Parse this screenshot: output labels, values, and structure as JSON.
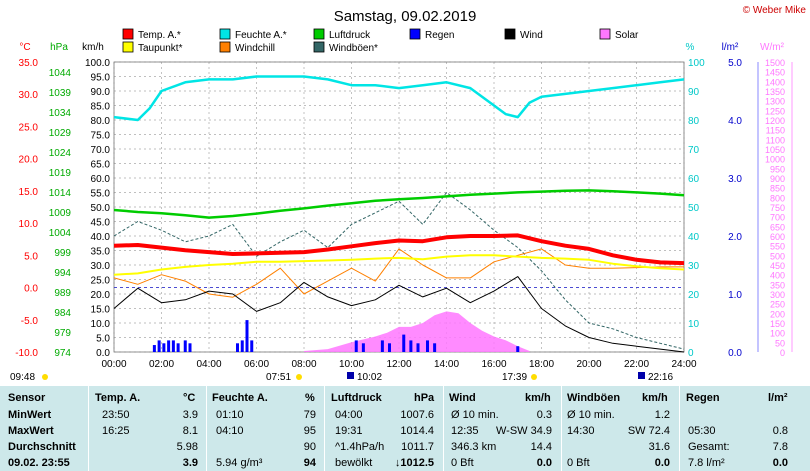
{
  "title": "Samstag, 09.02.2019",
  "copyright": "© Weber Mike",
  "legend": [
    {
      "label": "Temp. A.*",
      "color": "#ff0000"
    },
    {
      "label": "Feuchte A.*",
      "color": "#00e5e5"
    },
    {
      "label": "Luftdruck",
      "color": "#00cc00"
    },
    {
      "label": "Regen",
      "color": "#0000ff"
    },
    {
      "label": "Wind",
      "color": "#000000"
    },
    {
      "label": "Solar",
      "color": "#ff77ff"
    },
    {
      "label": "Taupunkt*",
      "color": "#ffff00"
    },
    {
      "label": "Windchill",
      "color": "#ff8000"
    },
    {
      "label": "Windböen*",
      "color": "#336666"
    }
  ],
  "axes": {
    "temp": {
      "unit": "°C",
      "ticks": [
        "35.0",
        "30.0",
        "25.0",
        "20.0",
        "15.0",
        "10.0",
        "5.0",
        "0.0",
        "-5.0",
        "-10.0"
      ],
      "color": "#ff0000"
    },
    "pressure": {
      "unit": "hPa",
      "ticks": [
        "1044",
        "1039",
        "1034",
        "1029",
        "1024",
        "1019",
        "1014",
        "1009",
        "1004",
        "999",
        "994",
        "989",
        "984",
        "979",
        "974"
      ],
      "color": "#00aa00"
    },
    "wind": {
      "unit": "km/h",
      "ticks": [
        "100.0",
        "95.0",
        "90.0",
        "85.0",
        "80.0",
        "75.0",
        "70.0",
        "65.0",
        "60.0",
        "55.0",
        "50.0",
        "45.0",
        "40.0",
        "35.0",
        "30.0",
        "25.0",
        "20.0",
        "15.0",
        "10.0",
        "5.0",
        "0.0"
      ],
      "color": "#000000"
    },
    "humidity": {
      "unit": "%",
      "ticks": [
        "100",
        "90",
        "80",
        "70",
        "60",
        "50",
        "40",
        "30",
        "20",
        "10",
        "0"
      ],
      "color": "#00c8c8"
    },
    "rain": {
      "unit": "l/m²",
      "ticks": [
        "5.0",
        "4.0",
        "3.0",
        "2.0",
        "1.0",
        "0.0"
      ],
      "color": "#0000cc"
    },
    "solar": {
      "unit": "W/m²",
      "ticks": [
        "1500",
        "1450",
        "1400",
        "1350",
        "1300",
        "1250",
        "1200",
        "1150",
        "1100",
        "1050",
        "1000",
        "950",
        "900",
        "850",
        "800",
        "750",
        "700",
        "650",
        "600",
        "550",
        "500",
        "450",
        "400",
        "350",
        "300",
        "250",
        "200",
        "150",
        "100",
        "50",
        "0"
      ],
      "color": "#ff77ff"
    },
    "time": [
      "00:00",
      "02:00",
      "04:00",
      "06:00",
      "08:00",
      "10:00",
      "12:00",
      "14:00",
      "16:00",
      "18:00",
      "20:00",
      "22:00",
      "24:00"
    ]
  },
  "sun_moon": {
    "moonset": "09:48",
    "sunrise": "07:51",
    "moonrise_1": "10:02",
    "sunset": "17:39",
    "moonrise_2": "22:16"
  },
  "chart_data": {
    "type": "line",
    "title": "Samstag, 09.02.2019",
    "x_range": [
      "00:00",
      "24:00"
    ],
    "series": [
      {
        "name": "Temp. A.*",
        "unit": "°C",
        "color": "#ff0000",
        "x": [
          0,
          1,
          2,
          3,
          4,
          5,
          6,
          7,
          8,
          9,
          10,
          11,
          12,
          13,
          14,
          15,
          16,
          17,
          18,
          19,
          20,
          21,
          22,
          23,
          24
        ],
        "values": [
          6.5,
          6.6,
          6.2,
          5.8,
          5.5,
          5.2,
          5.3,
          5.4,
          5.5,
          5.9,
          6.4,
          6.9,
          7.3,
          7.2,
          7.8,
          8.0,
          8.0,
          8.1,
          7.2,
          6.5,
          6.0,
          5.0,
          4.3,
          3.9,
          3.8
        ]
      },
      {
        "name": "Taupunkt*",
        "unit": "°C",
        "color": "#ffff00",
        "x": [
          0,
          1,
          2,
          3,
          4,
          5,
          6,
          7,
          8,
          9,
          10,
          11,
          12,
          13,
          14,
          15,
          16,
          17,
          18,
          19,
          20,
          21,
          22,
          23,
          24
        ],
        "values": [
          2.0,
          2.2,
          2.8,
          3.2,
          3.5,
          3.7,
          4.0,
          4.0,
          4.1,
          4.2,
          4.3,
          4.5,
          4.6,
          4.4,
          4.8,
          5.0,
          5.0,
          4.8,
          4.6,
          4.5,
          4.3,
          3.7,
          3.3,
          3.0,
          2.8
        ]
      },
      {
        "name": "Feuchte A.*",
        "unit": "%",
        "color": "#00e5e5",
        "x": [
          0,
          1,
          1.5,
          2,
          3,
          4,
          5,
          6,
          7,
          8,
          9,
          10,
          11,
          12,
          13,
          14,
          15,
          16,
          16.5,
          17,
          17.5,
          18,
          19,
          20,
          21,
          22,
          23,
          24
        ],
        "values": [
          81,
          80,
          84,
          90,
          93,
          94,
          94,
          95,
          95,
          95,
          94,
          92,
          92,
          91,
          92,
          93,
          91,
          85,
          82,
          81,
          86,
          88,
          89,
          90,
          91,
          92,
          93,
          94
        ]
      },
      {
        "name": "Luftdruck",
        "unit": "hPa",
        "color": "#00cc00",
        "x": [
          0,
          1,
          2,
          3,
          4,
          5,
          6,
          7,
          8,
          9,
          10,
          11,
          12,
          13,
          14,
          15,
          16,
          17,
          18,
          19,
          20,
          21,
          22,
          23,
          24
        ],
        "values": [
          1009.5,
          1009.0,
          1008.7,
          1008.2,
          1007.6,
          1008.0,
          1008.6,
          1009.3,
          1009.9,
          1010.6,
          1011.2,
          1011.8,
          1012.2,
          1012.5,
          1012.9,
          1013.3,
          1013.6,
          1013.9,
          1014.1,
          1014.3,
          1014.4,
          1014.2,
          1013.9,
          1013.6,
          1013.2
        ]
      },
      {
        "name": "Wind",
        "unit": "km/h",
        "color": "#000000",
        "x": [
          0,
          1,
          2,
          3,
          4,
          5,
          6,
          7,
          8,
          9,
          10,
          11,
          12,
          13,
          14,
          15,
          16,
          17,
          18,
          19,
          20,
          21,
          22,
          23,
          24
        ],
        "values": [
          15,
          22,
          17,
          18,
          21,
          20,
          14,
          17,
          24,
          19,
          16,
          18,
          23,
          19,
          22,
          17,
          21,
          26,
          15,
          9,
          5,
          3,
          2,
          1,
          0
        ]
      },
      {
        "name": "Windchill",
        "unit": "°C",
        "color": "#ff8000",
        "x": [
          0,
          1,
          2,
          3,
          4,
          5,
          6,
          7,
          8,
          9,
          10,
          11,
          12,
          13,
          14,
          15,
          16,
          17,
          18,
          19,
          20,
          21,
          22,
          23,
          24
        ],
        "values": [
          1.5,
          0.5,
          2.0,
          1.0,
          -1.0,
          -1.5,
          0.5,
          3.0,
          -1.0,
          1.0,
          3.0,
          1.0,
          6.0,
          3.5,
          1.5,
          1.5,
          4.0,
          5.0,
          6.0,
          3.5,
          3.0,
          3.0,
          3.1,
          3.2,
          3.2
        ]
      },
      {
        "name": "Windböen*",
        "unit": "km/h",
        "color": "#336666",
        "x": [
          0,
          1,
          2,
          3,
          4,
          5,
          6,
          7,
          8,
          9,
          10,
          11,
          12,
          13,
          14,
          15,
          16,
          17,
          18,
          19,
          20,
          21,
          22,
          23,
          24
        ],
        "values": [
          40,
          45,
          42,
          38,
          40,
          44,
          33,
          38,
          42,
          36,
          44,
          48,
          52,
          44,
          55,
          49,
          42,
          36,
          28,
          18,
          10,
          8,
          5,
          3,
          1
        ]
      },
      {
        "name": "Regen",
        "unit": "l/m²",
        "color": "#0000ff",
        "x": [
          1.7,
          1.9,
          2.1,
          2.3,
          2.5,
          2.7,
          3.0,
          3.2,
          5.2,
          5.4,
          5.6,
          5.8,
          10.2,
          10.5,
          11.3,
          11.6,
          12.2,
          12.5,
          12.8,
          13.2,
          13.5,
          17.0
        ],
        "values": [
          0.12,
          0.2,
          0.15,
          0.2,
          0.2,
          0.15,
          0.2,
          0.15,
          0.15,
          0.2,
          0.55,
          0.2,
          0.2,
          0.15,
          0.2,
          0.15,
          0.3,
          0.2,
          0.15,
          0.2,
          0.15,
          0.1
        ]
      },
      {
        "name": "Solar",
        "unit": "W/m²",
        "color": "#ff77ff",
        "x": [
          8,
          9,
          10,
          11,
          11.5,
          12,
          12.5,
          13,
          13.5,
          14,
          14.5,
          15,
          15.5,
          16,
          16.5,
          17,
          17.5
        ],
        "values": [
          5,
          15,
          50,
          80,
          100,
          130,
          130,
          150,
          190,
          210,
          200,
          150,
          110,
          80,
          60,
          30,
          5
        ]
      }
    ],
    "grid": true
  },
  "table": {
    "headers": {
      "sensor": "Sensor",
      "temp": "Temp. A.",
      "temp_unit": "°C",
      "feuchte": "Feuchte A.",
      "feuchte_unit": "%",
      "luftdruck": "Luftdruck",
      "luftdruck_unit": "hPa",
      "wind": "Wind",
      "wind_unit": "km/h",
      "boeen": "Windböen",
      "boeen_unit": "km/h",
      "regen": "Regen",
      "regen_unit": "l/m²"
    },
    "rows": [
      {
        "label": "MinWert",
        "temp_time": "23:50",
        "temp_val": "3.9",
        "feuchte_time": "01:10",
        "feuchte_val": "79",
        "druck_time": "04:00",
        "druck_val": "1007.6",
        "wind_label": "Ø 10 min.",
        "wind_val": "0.3",
        "boeen_label": "Ø 10 min.",
        "boeen_val": "1.2",
        "regen_label": "",
        "regen_val": ""
      },
      {
        "label": "MaxWert",
        "temp_time": "16:25",
        "temp_val": "8.1",
        "feuchte_time": "04:10",
        "feuchte_val": "95",
        "druck_time": "19:31",
        "druck_val": "1014.4",
        "wind_label": "12:35",
        "wind_dir": "W-SW 34.9",
        "wind_val": "",
        "boeen_label": "14:30",
        "boeen_dir": "SW 72.4",
        "boeen_val": "",
        "regen_label": "05:30",
        "regen_val": "0.8"
      },
      {
        "label": "Durchschnitt",
        "temp_time": "",
        "temp_val": "5.98",
        "feuchte_time": "",
        "feuchte_val": "90",
        "druck_time": "^1.4hPa/h",
        "druck_val": "1011.7",
        "wind_label": "346.3 km",
        "wind_val": "14.4",
        "boeen_label": "",
        "boeen_val": "31.6",
        "regen_label": "Gesamt:",
        "regen_val": "7.8"
      },
      {
        "label": "09.02. 23:55",
        "temp_time": "",
        "temp_val": "3.9",
        "feuchte_time": "5.94 g/m³",
        "feuchte_val": "94",
        "druck_time": "bewölkt",
        "druck_val": "↓1012.5",
        "wind_label": "0 Bft",
        "wind_val": "0.0",
        "boeen_label": "0 Bft",
        "boeen_val": "0.0",
        "regen_label": "7.8 l/m²",
        "regen_val": "0.0"
      }
    ]
  }
}
